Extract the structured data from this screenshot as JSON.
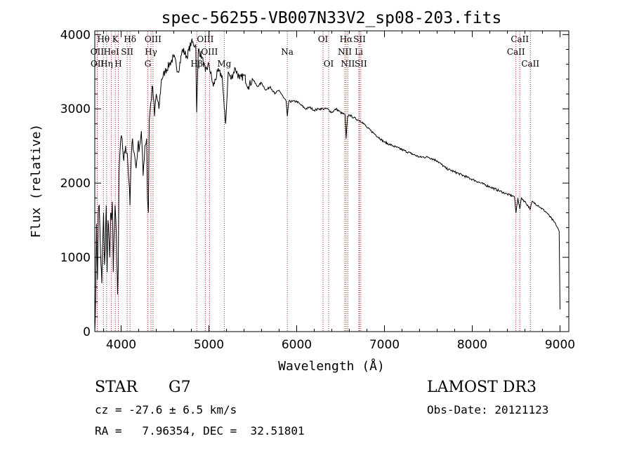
{
  "chart_data": {
    "type": "line",
    "title": "spec-56255-VB007N33V2_sp08-203.fits",
    "xlabel": "Wavelength (Å)",
    "ylabel": "Flux (relative)",
    "xlim": [
      3700,
      9100
    ],
    "ylim": [
      0,
      4050
    ],
    "xticks": [
      4000,
      5000,
      6000,
      7000,
      8000,
      9000
    ],
    "yticks": [
      0,
      1000,
      2000,
      3000,
      4000
    ],
    "grid": false,
    "series": [
      {
        "name": "flux",
        "x": [
          3700,
          3710,
          3720,
          3730,
          3740,
          3750,
          3760,
          3770,
          3780,
          3790,
          3800,
          3810,
          3820,
          3830,
          3840,
          3850,
          3860,
          3870,
          3880,
          3890,
          3900,
          3910,
          3920,
          3930,
          3940,
          3950,
          3960,
          3968,
          3975,
          3990,
          4010,
          4030,
          4050,
          4070,
          4090,
          4101,
          4110,
          4130,
          4150,
          4170,
          4190,
          4210,
          4230,
          4250,
          4270,
          4290,
          4300,
          4310,
          4320,
          4340,
          4360,
          4380,
          4400,
          4430,
          4460,
          4500,
          4550,
          4600,
          4650,
          4700,
          4750,
          4800,
          4850,
          4861,
          4880,
          4920,
          4960,
          5000,
          5050,
          5100,
          5150,
          5175,
          5190,
          5220,
          5250,
          5300,
          5350,
          5400,
          5450,
          5500,
          5550,
          5600,
          5650,
          5700,
          5750,
          5800,
          5850,
          5880,
          5893,
          5910,
          5950,
          6000,
          6050,
          6100,
          6150,
          6200,
          6250,
          6300,
          6350,
          6400,
          6450,
          6500,
          6550,
          6563,
          6580,
          6600,
          6650,
          6700,
          6750,
          6800,
          6900,
          7000,
          7100,
          7200,
          7300,
          7400,
          7500,
          7600,
          7700,
          7800,
          7900,
          8000,
          8100,
          8200,
          8300,
          8400,
          8480,
          8498,
          8520,
          8542,
          8560,
          8600,
          8662,
          8680,
          8750,
          8850,
          8950,
          8990,
          9000
        ],
        "y": [
          0,
          500,
          1450,
          700,
          1600,
          1700,
          1300,
          900,
          650,
          1200,
          1600,
          900,
          1100,
          1700,
          800,
          1500,
          1300,
          1000,
          1600,
          1500,
          1750,
          800,
          1300,
          1700,
          1500,
          1000,
          500,
          900,
          2100,
          2500,
          2600,
          2300,
          2500,
          2400,
          2000,
          1700,
          2200,
          2600,
          2400,
          2200,
          2500,
          2500,
          2700,
          2100,
          2500,
          2600,
          1800,
          1600,
          2850,
          3100,
          3300,
          2900,
          3200,
          3000,
          3400,
          3500,
          3600,
          3700,
          3500,
          3800,
          3700,
          3900,
          3850,
          2950,
          3800,
          3700,
          3500,
          3600,
          3300,
          3500,
          3450,
          3000,
          2800,
          3500,
          3400,
          3550,
          3400,
          3450,
          3300,
          3400,
          3300,
          3350,
          3250,
          3300,
          3200,
          3250,
          3150,
          3100,
          2900,
          3100,
          3100,
          3100,
          3050,
          3000,
          3020,
          2980,
          3000,
          3000,
          3000,
          2950,
          3000,
          2950,
          2920,
          2600,
          2900,
          2920,
          2880,
          2850,
          2820,
          2750,
          2650,
          2550,
          2500,
          2450,
          2400,
          2350,
          2350,
          2300,
          2200,
          2150,
          2100,
          2050,
          2000,
          1950,
          1900,
          1850,
          1820,
          1600,
          1800,
          1650,
          1800,
          1750,
          1650,
          1750,
          1700,
          1600,
          1450,
          1350,
          300
        ]
      }
    ],
    "lines": [
      {
        "label": "Hθ",
        "x": 3798,
        "row": 1
      },
      {
        "label": "OII",
        "x": 3727,
        "row": 2
      },
      {
        "label": "OII",
        "x": 3729,
        "row": 3
      },
      {
        "label": "Hη",
        "x": 3835,
        "row": 3
      },
      {
        "label": "HeI",
        "x": 3889,
        "row": 2
      },
      {
        "label": "K",
        "x": 3934,
        "row": 1
      },
      {
        "label": "SII",
        "x": 4069,
        "row": 2
      },
      {
        "label": "H",
        "x": 3968,
        "row": 3
      },
      {
        "label": "Hδ",
        "x": 4101,
        "row": 1
      },
      {
        "label": "OIII",
        "x": 4363,
        "row": 1
      },
      {
        "label": "Hγ",
        "x": 4340,
        "row": 2
      },
      {
        "label": "G",
        "x": 4304,
        "row": 3
      },
      {
        "label": "Hβ",
        "x": 4861,
        "row": 3
      },
      {
        "label": "OIII",
        "x": 4959,
        "row": 1
      },
      {
        "label": "OIII",
        "x": 5007,
        "row": 2
      },
      {
        "label": "Mg",
        "x": 5175,
        "row": 3
      },
      {
        "label": "Na",
        "x": 5893,
        "row": 2
      },
      {
        "label": "OI",
        "x": 6300,
        "row": 1
      },
      {
        "label": "OI",
        "x": 6364,
        "row": 3
      },
      {
        "label": "Hα",
        "x": 6563,
        "row": 1
      },
      {
        "label": "NII",
        "x": 6548,
        "row": 2
      },
      {
        "label": "NII",
        "x": 6583,
        "row": 3
      },
      {
        "label": "SII",
        "x": 6716,
        "row": 1
      },
      {
        "label": "Li",
        "x": 6708,
        "row": 2
      },
      {
        "label": "SII",
        "x": 6731,
        "row": 3
      },
      {
        "label": "CaII",
        "x": 8542,
        "row": 1
      },
      {
        "label": "CaII",
        "x": 8498,
        "row": 2
      },
      {
        "label": "CaII",
        "x": 8662,
        "row": 3
      }
    ]
  },
  "info": {
    "object_class": "STAR",
    "subclass": "G7",
    "survey": "LAMOST DR3",
    "cz": "cz = -27.6 ± 6.5 km/s",
    "obs_date": "Obs-Date: 20121123",
    "coords": "RA =   7.96354, DEC =  32.51801"
  },
  "colors": {
    "spectrum": "#000000",
    "line_marker": "#b22222",
    "background": "#ffffff"
  }
}
